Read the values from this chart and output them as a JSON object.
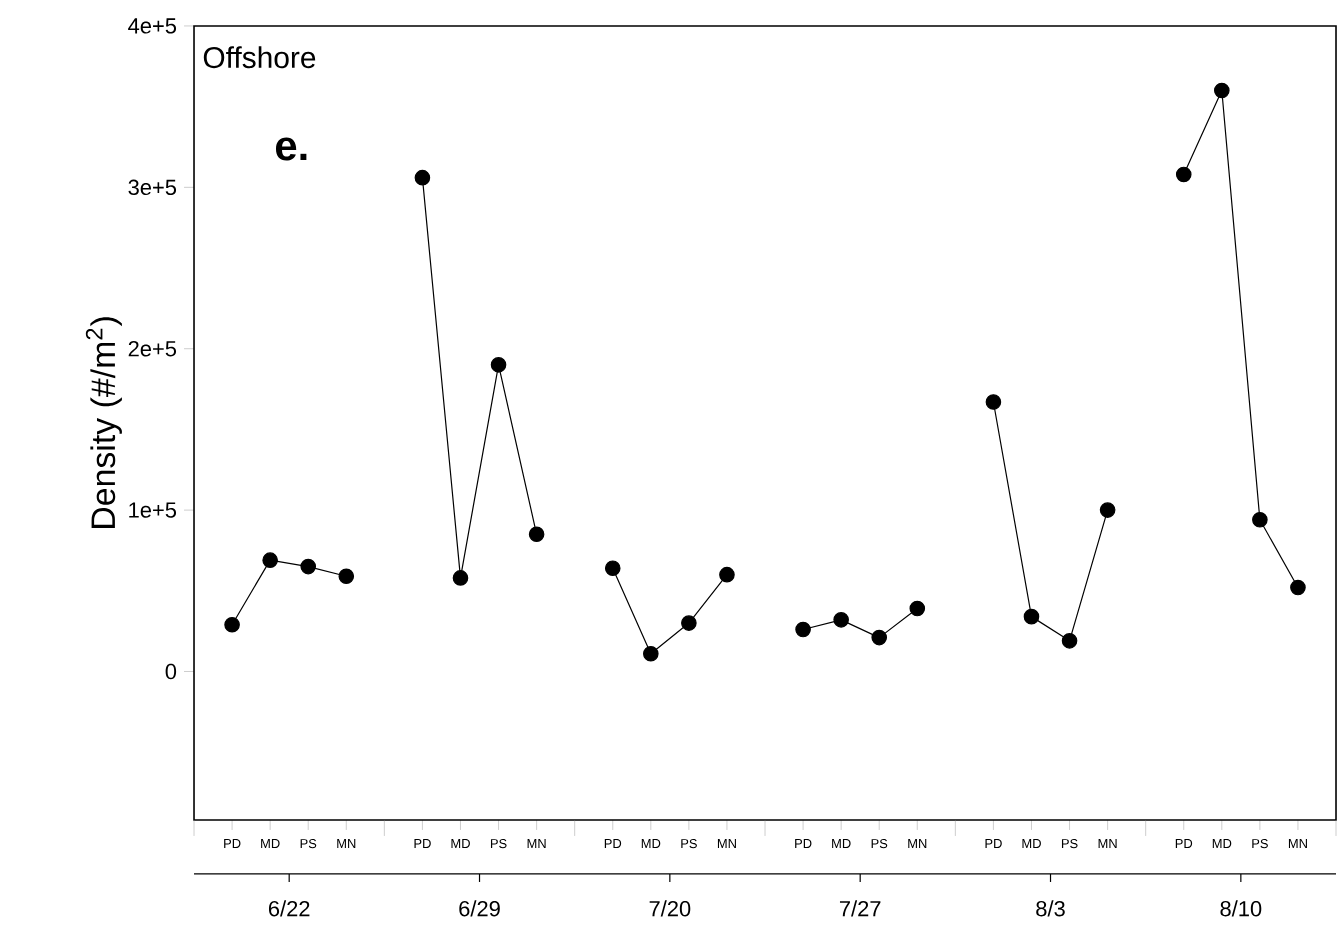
{
  "chart_data": {
    "type": "line",
    "categories": [
      null,
      "PD",
      "MD",
      "PS",
      "MN",
      null,
      "PD",
      "MD",
      "PS",
      "MN",
      null,
      "PD",
      "MD",
      "PS",
      "MN",
      null,
      "PD",
      "MD",
      "PS",
      "MN",
      null,
      "PD",
      "MD",
      "PS",
      "MN",
      null,
      "PD",
      "MD",
      "PS",
      "MN",
      null
    ],
    "series": [
      {
        "color": "#000000",
        "values": [
          null,
          29000,
          69000,
          65000,
          59000,
          null,
          306000,
          58000,
          190000,
          85000,
          null,
          64000,
          11000,
          30000,
          60000,
          null,
          26000,
          32000,
          21000,
          39000,
          null,
          167000,
          34000,
          19000,
          100000,
          null,
          308000,
          360000,
          94000,
          52000,
          null
        ]
      }
    ],
    "ylabel": "Density (#/m$^{2}$)",
    "ylim": [
      -92000,
      400000
    ],
    "yticks": [
      {
        "value": 0,
        "label": "0"
      },
      {
        "value": 100000,
        "label": "1e+5"
      },
      {
        "value": 200000,
        "label": "2e+5"
      },
      {
        "value": 300000,
        "label": "3e+5"
      },
      {
        "value": 400000,
        "label": "4e+5"
      }
    ],
    "annotations": [
      "Offshore",
      "**e.**",
      "6/22",
      "6/29",
      "7/20",
      "7/27",
      "8/3",
      "8/10"
    ],
    "marker": "circle",
    "line_style": "solid",
    "grid": false
  }
}
